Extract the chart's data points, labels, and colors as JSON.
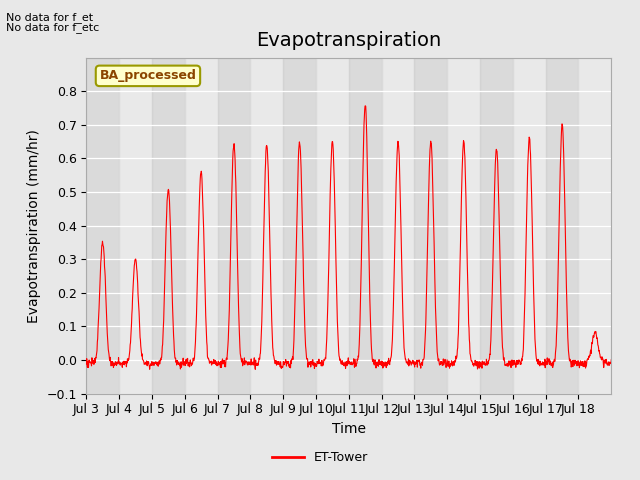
{
  "title": "Evapotranspiration",
  "ylabel": "Evapotranspiration (mm/hr)",
  "xlabel": "Time",
  "ylim": [
    -0.1,
    0.9
  ],
  "yticks": [
    -0.1,
    0.0,
    0.1,
    0.2,
    0.3,
    0.4,
    0.5,
    0.6,
    0.7,
    0.8
  ],
  "line_color": "red",
  "line_label": "ET-Tower",
  "bg_color": "#e8e8e8",
  "plot_bg_color": "#f0f0f0",
  "annotation_top_left_line1": "No data for f_et",
  "annotation_top_left_line2": "No data for f_etc",
  "box_label": "BA_processed",
  "box_bg_color": "#ffffcc",
  "box_border_color": "#999900",
  "xticklabels": [
    "Jul 3",
    "Jul 4",
    "Jul 5",
    "Jul 6",
    "Jul 7",
    "Jul 8",
    "Jul 9",
    "Jul 10",
    "Jul 11",
    "Jul 12",
    "Jul 13",
    "Jul 14",
    "Jul 15",
    "Jul 16",
    "Jul 17",
    "Jul 18"
  ],
  "title_fontsize": 14,
  "axis_fontsize": 10,
  "tick_fontsize": 9,
  "n_days": 16,
  "n_per_day": 96,
  "peaks": [
    0.35,
    0.3,
    0.51,
    0.56,
    0.64,
    0.64,
    0.65,
    0.65,
    0.76,
    0.65,
    0.65,
    0.65,
    0.63,
    0.66,
    0.7,
    0.08
  ]
}
